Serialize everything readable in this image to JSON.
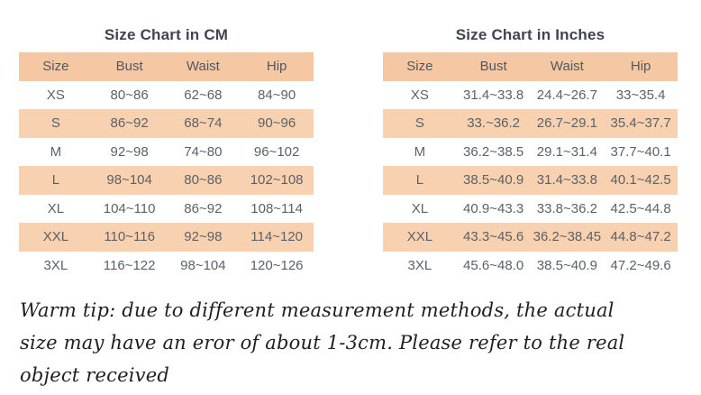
{
  "colors": {
    "header_row_bg": "#f5c7a2",
    "striped_row_bg": "#f8d1b0",
    "title_text": "#3e4450",
    "cell_text": "#5d6166",
    "tip_text": "#1f1f1f",
    "page_bg": "#ffffff"
  },
  "tables": [
    {
      "title": "Size Chart in CM",
      "columns": [
        "Size",
        "Bust",
        "Waist",
        "Hip"
      ],
      "rows": [
        [
          "XS",
          "80~86",
          "62~68",
          "84~90"
        ],
        [
          "S",
          "86~92",
          "68~74",
          "90~96"
        ],
        [
          "M",
          "92~98",
          "74~80",
          "96~102"
        ],
        [
          "L",
          "98~104",
          "80~86",
          "102~108"
        ],
        [
          "XL",
          "104~110",
          "86~92",
          "108~114"
        ],
        [
          "XXL",
          "110~116",
          "92~98",
          "114~120"
        ],
        [
          "3XL",
          "116~122",
          "98~104",
          "120~126"
        ]
      ]
    },
    {
      "title": "Size Chart in Inches",
      "columns": [
        "Size",
        "Bust",
        "Waist",
        "Hip"
      ],
      "rows": [
        [
          "XS",
          "31.4~33.8",
          "24.4~26.7",
          "33~35.4"
        ],
        [
          "S",
          "33.~36.2",
          "26.7~29.1",
          "35.4~37.7"
        ],
        [
          "M",
          "36.2~38.5",
          "29.1~31.4",
          "37.7~40.1"
        ],
        [
          "L",
          "38.5~40.9",
          "31.4~33.8",
          "40.1~42.5"
        ],
        [
          "XL",
          "40.9~43.3",
          "33.8~36.2",
          "42.5~44.8"
        ],
        [
          "XXL",
          "43.3~45.6",
          "36.2~38.45",
          "44.8~47.2"
        ],
        [
          "3XL",
          "45.6~48.0",
          "38.5~40.9",
          "47.2~49.6"
        ]
      ]
    }
  ],
  "warm_tip": "Warm tip: due to different measurement methods, the actual size may have an eror of about 1-3cm. Please refer to the real object received"
}
